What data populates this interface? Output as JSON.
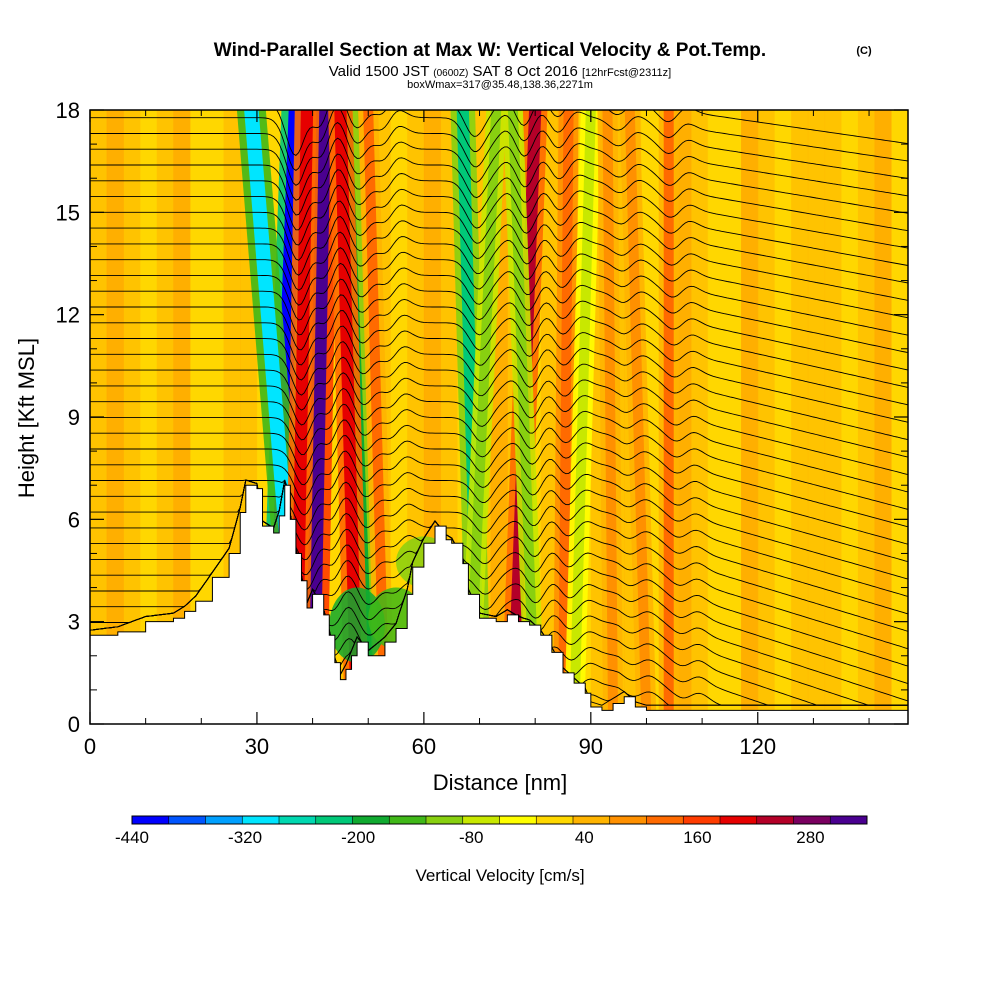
{
  "chart_data": {
    "type": "heatmap",
    "title": "Wind-Parallel Section at Max W: Vertical Velocity & Pot.Temp.",
    "title_mark": "(C)",
    "subtitle": {
      "a": "Valid 1500 JST",
      "b": "(0600Z)",
      "c": "SAT 8 Oct 2016",
      "d": "[12hrFcst@2311z]"
    },
    "subtitle2": "boxWmax=317@35.48,138.36,2271m",
    "xlabel": "Distance [nm]",
    "ylabel": "Height [Kft MSL]",
    "xlim": [
      0,
      147
    ],
    "ylim": [
      0,
      18
    ],
    "xticks": [
      0,
      30,
      60,
      90,
      120
    ],
    "yticks": [
      0,
      3,
      6,
      9,
      12,
      15,
      18
    ],
    "colorbar": {
      "label": "Vertical Velocity [cm/s]",
      "tick_labels": [
        "-440",
        "-320",
        "-200",
        "-80",
        "40",
        "160",
        "280"
      ],
      "tick_values": [
        -440,
        -320,
        -200,
        -80,
        40,
        160,
        280
      ],
      "range": [
        -440,
        340
      ],
      "colors": [
        "#0000ff",
        "#0055ff",
        "#00a0ff",
        "#00e5ff",
        "#00d8b0",
        "#00c878",
        "#10aa30",
        "#40b818",
        "#88d010",
        "#c8e800",
        "#ffff00",
        "#ffd800",
        "#ffb400",
        "#ff9000",
        "#ff6a00",
        "#ff3c00",
        "#e60000",
        "#b40028",
        "#7a0060",
        "#4a0090"
      ]
    },
    "terrain": [
      [
        0,
        2.6
      ],
      [
        5,
        2.7
      ],
      [
        10,
        3.0
      ],
      [
        15,
        3.1
      ],
      [
        17,
        3.3
      ],
      [
        19,
        3.6
      ],
      [
        22,
        4.3
      ],
      [
        25,
        5.0
      ],
      [
        27,
        6.2
      ],
      [
        28,
        7.0
      ],
      [
        30,
        6.9
      ],
      [
        31,
        5.8
      ],
      [
        33,
        5.6
      ],
      [
        34,
        6.1
      ],
      [
        35,
        7.0
      ],
      [
        36,
        6.0
      ],
      [
        37,
        5.0
      ],
      [
        38,
        4.2
      ],
      [
        39,
        3.4
      ],
      [
        40,
        3.8
      ],
      [
        42,
        3.2
      ],
      [
        43,
        2.6
      ],
      [
        44,
        1.8
      ],
      [
        45,
        1.3
      ],
      [
        46,
        1.6
      ],
      [
        47,
        2.0
      ],
      [
        48,
        2.4
      ],
      [
        50,
        2.0
      ],
      [
        53,
        2.4
      ],
      [
        55,
        2.8
      ],
      [
        57,
        3.8
      ],
      [
        58,
        4.6
      ],
      [
        60,
        5.3
      ],
      [
        62,
        5.8
      ],
      [
        64,
        5.4
      ],
      [
        65,
        5.3
      ],
      [
        67,
        4.7
      ],
      [
        68,
        3.8
      ],
      [
        70,
        3.1
      ],
      [
        73,
        3.0
      ],
      [
        75,
        3.2
      ],
      [
        77,
        3.0
      ],
      [
        79,
        2.9
      ],
      [
        81,
        2.6
      ],
      [
        83,
        2.1
      ],
      [
        85,
        1.5
      ],
      [
        87,
        1.2
      ],
      [
        89,
        0.9
      ],
      [
        90,
        0.5
      ],
      [
        92,
        0.4
      ],
      [
        94,
        0.6
      ],
      [
        96,
        0.8
      ],
      [
        98,
        0.5
      ],
      [
        100,
        0.4
      ],
      [
        105,
        0.4
      ],
      [
        110,
        0.4
      ],
      [
        120,
        0.4
      ],
      [
        130,
        0.4
      ],
      [
        140,
        0.4
      ],
      [
        147,
        0.4
      ]
    ],
    "updraft_bands": [
      {
        "x_bottom": 40,
        "x_top": 42,
        "w": 330
      },
      {
        "x_bottom": 33,
        "x_top": 37,
        "w": -440
      },
      {
        "x_bottom": 38,
        "x_top": 29,
        "w": -320
      },
      {
        "x_bottom": 37,
        "x_top": 39,
        "w": 220
      },
      {
        "x_bottom": 50,
        "x_top": 46,
        "w": -180
      },
      {
        "x_bottom": 48,
        "x_top": 45,
        "w": 200
      },
      {
        "x_bottom": 53,
        "x_top": 50,
        "w": 120
      },
      {
        "x_bottom": 70,
        "x_top": 67,
        "w": -240
      },
      {
        "x_bottom": 68,
        "x_top": 73,
        "w": -120
      },
      {
        "x_bottom": 76,
        "x_top": 80,
        "w": 230
      },
      {
        "x_bottom": 80,
        "x_top": 76,
        "w": -120
      },
      {
        "x_bottom": 85,
        "x_top": 86,
        "w": 140
      },
      {
        "x_bottom": 87,
        "x_top": 90,
        "w": -80
      },
      {
        "x_bottom": 94,
        "x_top": 93,
        "w": 90
      },
      {
        "x_bottom": 100,
        "x_top": 97,
        "w": 100
      },
      {
        "x_bottom": 104,
        "x_top": 104,
        "w": 110
      }
    ],
    "downdraft_lowlevel": [
      {
        "x": 48,
        "y0": 1.8,
        "y1": 4.0,
        "w": -200
      },
      {
        "x": 55,
        "y0": 2.2,
        "y1": 4.0,
        "w": -160
      },
      {
        "x": 60,
        "y0": 4.0,
        "y1": 5.5,
        "w": -100
      }
    ],
    "isentrope_count": 40
  }
}
